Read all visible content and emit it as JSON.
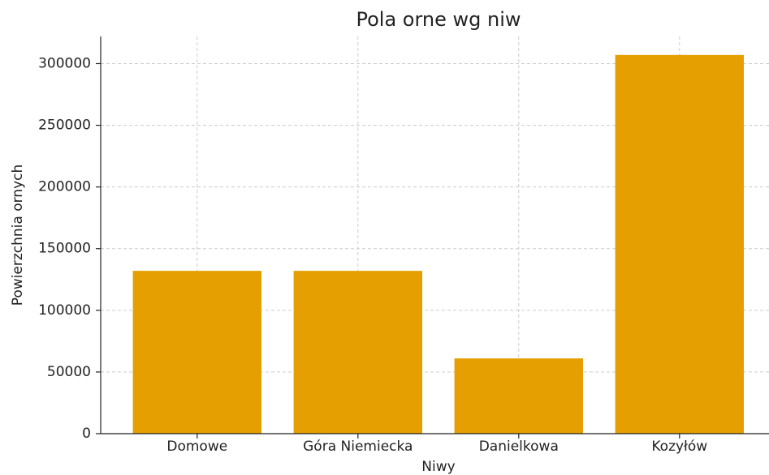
{
  "chart_data": {
    "type": "bar",
    "title": "Pola orne wg niw",
    "x_label": "Niwy",
    "y_label": "Powierzchnia ornych",
    "categories": [
      "Domowe",
      "Góra Niemiecka",
      "Danielkowa",
      "Kozyłów"
    ],
    "values": [
      132000,
      132000,
      61000,
      307000
    ],
    "color": "#e69f00",
    "ylim": [
      0,
      322000
    ],
    "yticks": [
      0,
      50000,
      100000,
      150000,
      200000,
      250000,
      300000
    ],
    "grid": true
  }
}
